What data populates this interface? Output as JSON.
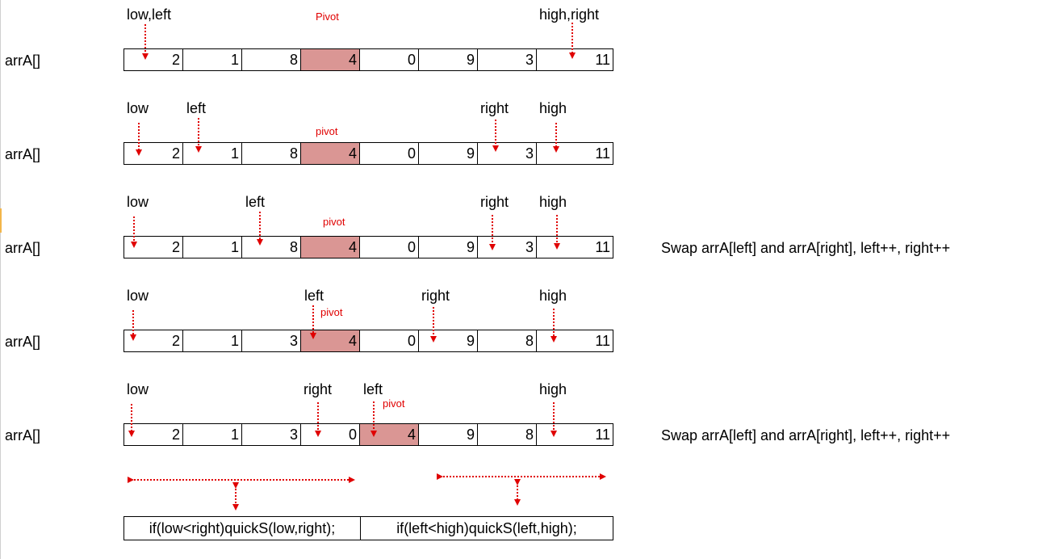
{
  "array_name": "arrA[]",
  "rows": [
    {
      "labels": [
        {
          "text": "low,left",
          "cell": 0
        },
        {
          "text": "high,right",
          "cell": 7
        }
      ],
      "pivot_label": "Pivot",
      "values": [
        "2",
        "1",
        "8",
        "4",
        "0",
        "9",
        "3",
        "11"
      ],
      "pivot_index": 3,
      "note": ""
    },
    {
      "labels": [
        {
          "text": "low",
          "cell": 0
        },
        {
          "text": "left",
          "cell": 1
        },
        {
          "text": "right",
          "cell": 6
        },
        {
          "text": "high",
          "cell": 7
        }
      ],
      "pivot_label": "pivot",
      "values": [
        "2",
        "1",
        "8",
        "4",
        "0",
        "9",
        "3",
        "11"
      ],
      "pivot_index": 3,
      "note": ""
    },
    {
      "labels": [
        {
          "text": "low",
          "cell": 0
        },
        {
          "text": "left",
          "cell": 2
        },
        {
          "text": "right",
          "cell": 6
        },
        {
          "text": "high",
          "cell": 7
        }
      ],
      "pivot_label": "pivot",
      "values": [
        "2",
        "1",
        "8",
        "4",
        "0",
        "9",
        "3",
        "11"
      ],
      "pivot_index": 3,
      "note": "Swap arrA[left] and arrA[right], left++, right++"
    },
    {
      "labels": [
        {
          "text": "low",
          "cell": 0
        },
        {
          "text": "left",
          "cell": 3
        },
        {
          "text": "right",
          "cell": 5
        },
        {
          "text": "high",
          "cell": 7
        }
      ],
      "pivot_label": "pivot",
      "values": [
        "2",
        "1",
        "3",
        "4",
        "0",
        "9",
        "8",
        "11"
      ],
      "pivot_index": 3,
      "note": ""
    },
    {
      "labels": [
        {
          "text": "low",
          "cell": 0
        },
        {
          "text": "right",
          "cell": 3
        },
        {
          "text": "left",
          "cell": 4
        },
        {
          "text": "high",
          "cell": 7
        }
      ],
      "pivot_label": "pivot",
      "values": [
        "2",
        "1",
        "3",
        "0",
        "4",
        "9",
        "8",
        "11"
      ],
      "pivot_index": 4,
      "note": "Swap arrA[left] and arrA[right], left++, right++"
    }
  ],
  "recursive_calls": {
    "left_call": "if(low<right)quickS(low,right);",
    "right_call": "if(left<high)quickS(left,high);"
  },
  "colors": {
    "pivot_fill": "#da9694",
    "arrow": "#e00000",
    "pivot_text": "#e00000"
  }
}
